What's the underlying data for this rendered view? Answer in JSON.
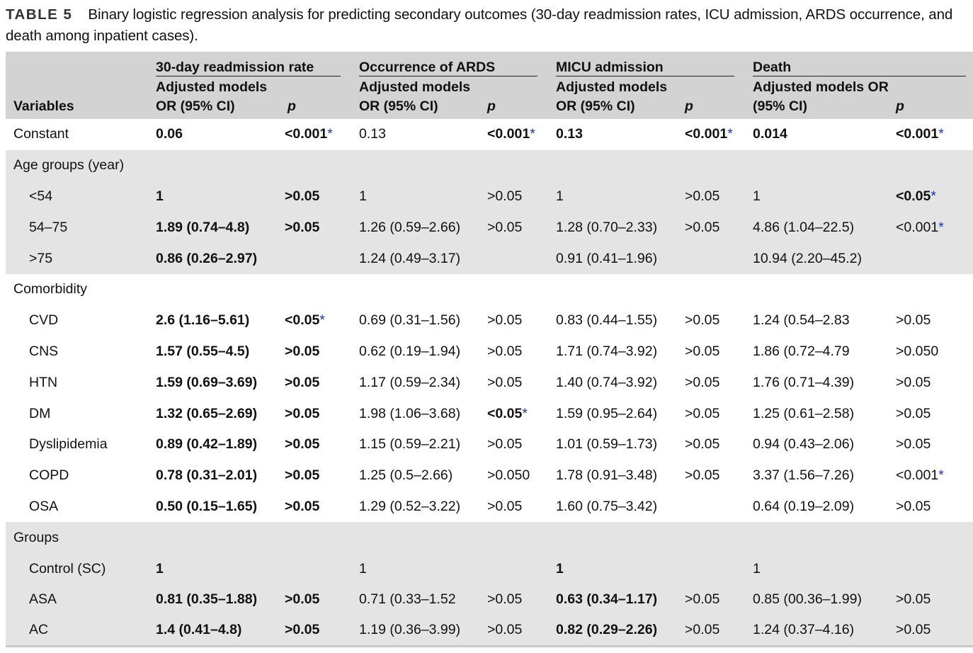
{
  "caption": {
    "label": "TABLE 5",
    "text": "Binary logistic regression analysis for predicting secondary outcomes (30-day readmission rates, ICU admission, ARDS occurrence, and death among inpatient cases)."
  },
  "header": {
    "variables": "Variables",
    "groups": [
      {
        "title": "30-day readmission rate",
        "sub1": "Adjusted models",
        "sub2": "OR (95% CI)",
        "p": "p"
      },
      {
        "title": "Occurrence of ARDS",
        "sub1": "Adjusted models",
        "sub2": "OR (95% CI)",
        "p": "p"
      },
      {
        "title": "MICU admission",
        "sub1": "Adjusted models",
        "sub2": "OR (95% CI)",
        "p": "p"
      },
      {
        "title": "Death",
        "sub1": "Adjusted models OR",
        "sub2": "(95% CI)",
        "p": "p"
      }
    ]
  },
  "rows": [
    {
      "label": "Constant",
      "indent": false,
      "gray": false,
      "cells": [
        {
          "v": "0.06",
          "b": true
        },
        {
          "v": "<0.001",
          "b": true,
          "a": true
        },
        {
          "v": "0.13",
          "b": false
        },
        {
          "v": "<0.001",
          "b": true,
          "a": true
        },
        {
          "v": "0.13",
          "b": true
        },
        {
          "v": "<0.001",
          "b": true,
          "a": true
        },
        {
          "v": "0.014",
          "b": true
        },
        {
          "v": "<0.001",
          "b": true,
          "a": true
        }
      ]
    },
    {
      "label": "Age groups (year)",
      "indent": false,
      "gray": true,
      "cells": []
    },
    {
      "label": "<54",
      "indent": true,
      "gray": true,
      "cells": [
        {
          "v": "1",
          "b": true
        },
        {
          "v": ">0.05",
          "b": true
        },
        {
          "v": "1",
          "b": false
        },
        {
          "v": ">0.05",
          "b": false
        },
        {
          "v": "1",
          "b": false
        },
        {
          "v": ">0.05",
          "b": false
        },
        {
          "v": "1",
          "b": false
        },
        {
          "v": "<0.05",
          "b": true,
          "a": true
        }
      ]
    },
    {
      "label": "54–75",
      "indent": true,
      "gray": true,
      "cells": [
        {
          "v": "1.89 (0.74–4.8)",
          "b": true
        },
        {
          "v": ">0.05",
          "b": true
        },
        {
          "v": "1.26 (0.59–2.66)",
          "b": false
        },
        {
          "v": ">0.05",
          "b": false
        },
        {
          "v": "1.28 (0.70–2.33)",
          "b": false
        },
        {
          "v": ">0.05",
          "b": false
        },
        {
          "v": "4.86 (1.04–22.5)",
          "b": false
        },
        {
          "v": "<0.001",
          "b": false,
          "a": true
        }
      ]
    },
    {
      "label": ">75",
      "indent": true,
      "gray": true,
      "cells": [
        {
          "v": "0.86 (0.26–2.97)",
          "b": true
        },
        {
          "v": "",
          "b": false
        },
        {
          "v": "1.24 (0.49–3.17)",
          "b": false
        },
        {
          "v": "",
          "b": false
        },
        {
          "v": "0.91 (0.41–1.96)",
          "b": false
        },
        {
          "v": "",
          "b": false
        },
        {
          "v": "10.94 (2.20–45.2)",
          "b": false
        },
        {
          "v": "",
          "b": false
        }
      ]
    },
    {
      "label": "Comorbidity",
      "indent": false,
      "gray": false,
      "cells": []
    },
    {
      "label": "CVD",
      "indent": true,
      "gray": false,
      "cells": [
        {
          "v": "2.6 (1.16–5.61)",
          "b": true
        },
        {
          "v": "<0.05",
          "b": true,
          "a": true
        },
        {
          "v": "0.69 (0.31–1.56)",
          "b": false
        },
        {
          "v": ">0.05",
          "b": false
        },
        {
          "v": "0.83 (0.44–1.55)",
          "b": false
        },
        {
          "v": ">0.05",
          "b": false
        },
        {
          "v": "1.24 (0.54–2.83",
          "b": false
        },
        {
          "v": ">0.05",
          "b": false
        }
      ]
    },
    {
      "label": "CNS",
      "indent": true,
      "gray": false,
      "cells": [
        {
          "v": "1.57 (0.55–4.5)",
          "b": true
        },
        {
          "v": ">0.05",
          "b": true
        },
        {
          "v": "0.62 (0.19–1.94)",
          "b": false
        },
        {
          "v": ">0.05",
          "b": false
        },
        {
          "v": "1.71 (0.74–3.92)",
          "b": false
        },
        {
          "v": ">0.05",
          "b": false
        },
        {
          "v": "1.86 (0.72–4.79",
          "b": false
        },
        {
          "v": ">0.050",
          "b": false
        }
      ]
    },
    {
      "label": "HTN",
      "indent": true,
      "gray": false,
      "cells": [
        {
          "v": "1.59 (0.69–3.69)",
          "b": true
        },
        {
          "v": ">0.05",
          "b": true
        },
        {
          "v": "1.17 (0.59–2.34)",
          "b": false
        },
        {
          "v": ">0.05",
          "b": false
        },
        {
          "v": "1.40 (0.74–3.92)",
          "b": false
        },
        {
          "v": ">0.05",
          "b": false
        },
        {
          "v": "1.76 (0.71–4.39)",
          "b": false
        },
        {
          "v": ">0.05",
          "b": false
        }
      ]
    },
    {
      "label": "DM",
      "indent": true,
      "gray": false,
      "cells": [
        {
          "v": "1.32 (0.65–2.69)",
          "b": true
        },
        {
          "v": ">0.05",
          "b": true
        },
        {
          "v": "1.98 (1.06–3.68)",
          "b": false
        },
        {
          "v": "<0.05",
          "b": true,
          "a": true
        },
        {
          "v": "1.59 (0.95–2.64)",
          "b": false
        },
        {
          "v": ">0.05",
          "b": false
        },
        {
          "v": "1.25 (0.61–2.58)",
          "b": false
        },
        {
          "v": ">0.05",
          "b": false
        }
      ]
    },
    {
      "label": "Dyslipidemia",
      "indent": true,
      "gray": false,
      "cells": [
        {
          "v": "0.89 (0.42–1.89)",
          "b": true
        },
        {
          "v": ">0.05",
          "b": true
        },
        {
          "v": "1.15 (0.59–2.21)",
          "b": false
        },
        {
          "v": ">0.05",
          "b": false
        },
        {
          "v": "1.01 (0.59–1.73)",
          "b": false
        },
        {
          "v": ">0.05",
          "b": false
        },
        {
          "v": "0.94 (0.43–2.06)",
          "b": false
        },
        {
          "v": ">0.05",
          "b": false
        }
      ]
    },
    {
      "label": "COPD",
      "indent": true,
      "gray": false,
      "cells": [
        {
          "v": "0.78 (0.31–2.01)",
          "b": true
        },
        {
          "v": ">0.05",
          "b": true
        },
        {
          "v": "1.25 (0.5–2.66)",
          "b": false
        },
        {
          "v": ">0.050",
          "b": false
        },
        {
          "v": "1.78 (0.91–3.48)",
          "b": false
        },
        {
          "v": ">0.05",
          "b": false
        },
        {
          "v": "3.37 (1.56–7.26)",
          "b": false
        },
        {
          "v": "<0.001",
          "b": false,
          "a": true
        }
      ]
    },
    {
      "label": "OSA",
      "indent": true,
      "gray": false,
      "cells": [
        {
          "v": "0.50 (0.15–1.65)",
          "b": true
        },
        {
          "v": ">0.05",
          "b": true
        },
        {
          "v": "1.29 (0.52–3.22)",
          "b": false
        },
        {
          "v": ">0.05",
          "b": false
        },
        {
          "v": "1.60 (0.75–3.42)",
          "b": false
        },
        {
          "v": "",
          "b": false
        },
        {
          "v": "0.64 (0.19–2.09)",
          "b": false
        },
        {
          "v": ">0.05",
          "b": false
        }
      ]
    },
    {
      "label": "Groups",
      "indent": false,
      "gray": true,
      "cells": []
    },
    {
      "label": "Control (SC)",
      "indent": true,
      "gray": true,
      "cells": [
        {
          "v": "1",
          "b": true
        },
        {
          "v": "",
          "b": false
        },
        {
          "v": "1",
          "b": false
        },
        {
          "v": "",
          "b": false
        },
        {
          "v": "1",
          "b": true
        },
        {
          "v": "",
          "b": false
        },
        {
          "v": "1",
          "b": false
        },
        {
          "v": "",
          "b": false
        }
      ]
    },
    {
      "label": "ASA",
      "indent": true,
      "gray": true,
      "cells": [
        {
          "v": "0.81 (0.35–1.88)",
          "b": true
        },
        {
          "v": ">0.05",
          "b": true
        },
        {
          "v": "0.71 (0.33–1.52",
          "b": false
        },
        {
          "v": ">0.05",
          "b": false
        },
        {
          "v": "0.63 (0.34–1.17)",
          "b": true
        },
        {
          "v": ">0.05",
          "b": false
        },
        {
          "v": "0.85 (00.36–1.99)",
          "b": false
        },
        {
          "v": ">0.05",
          "b": false
        }
      ]
    },
    {
      "label": "AC",
      "indent": true,
      "gray": true,
      "cells": [
        {
          "v": "1.4 (0.41–4.8)",
          "b": true
        },
        {
          "v": ">0.05",
          "b": true
        },
        {
          "v": "1.19 (0.36–3.99)",
          "b": false
        },
        {
          "v": ">0.05",
          "b": false
        },
        {
          "v": "0.82 (0.29–2.26)",
          "b": true
        },
        {
          "v": ">0.05",
          "b": false
        },
        {
          "v": "1.24 (0.37–4.16)",
          "b": false
        },
        {
          "v": ">0.05",
          "b": false
        }
      ]
    }
  ]
}
